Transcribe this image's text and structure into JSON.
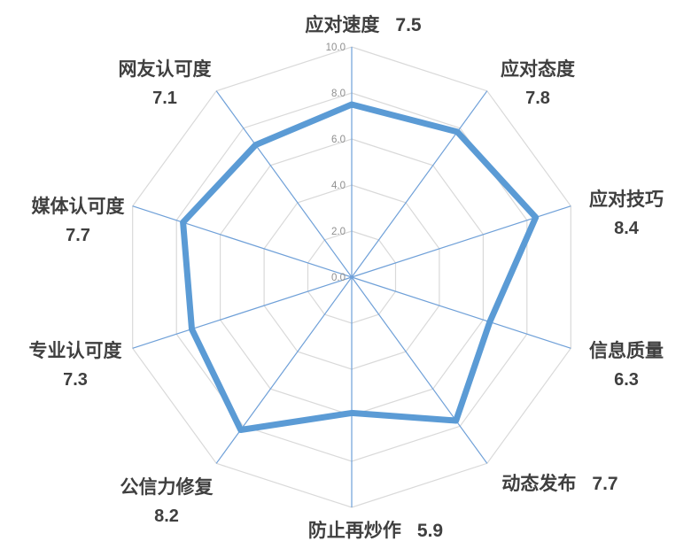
{
  "chart_data": {
    "type": "radar",
    "title": "",
    "min": 0,
    "max": 10,
    "tick_interval": 2,
    "tick_labels": [
      "0.0",
      "2.0",
      "4.0",
      "6.0",
      "8.0",
      "10.0"
    ],
    "grid": true,
    "legend_position": "none",
    "axes": [
      {
        "label": "应对速度",
        "value": 7.5,
        "value_str": "7.5"
      },
      {
        "label": "应对态度",
        "value": 7.8,
        "value_str": "7.8"
      },
      {
        "label": "应对技巧",
        "value": 8.4,
        "value_str": "8.4"
      },
      {
        "label": "信息质量",
        "value": 6.3,
        "value_str": "6.3"
      },
      {
        "label": "动态发布",
        "value": 7.7,
        "value_str": "7.7"
      },
      {
        "label": "防止再炒作",
        "value": 5.9,
        "value_str": "5.9"
      },
      {
        "label": "公信力修复",
        "value": 8.2,
        "value_str": "8.2"
      },
      {
        "label": "专业认可度",
        "value": 7.3,
        "value_str": "7.3"
      },
      {
        "label": "媒体认可度",
        "value": 7.7,
        "value_str": "7.7"
      },
      {
        "label": "网友认可度",
        "value": 7.1,
        "value_str": "7.1"
      }
    ],
    "colors": {
      "series_line": "#5B9BD5",
      "spoke_line": "#6FA0D8",
      "grid_line": "#D9D9D9",
      "tick_text": "#8F8F8F",
      "label_text": "#3F3F3F"
    }
  }
}
